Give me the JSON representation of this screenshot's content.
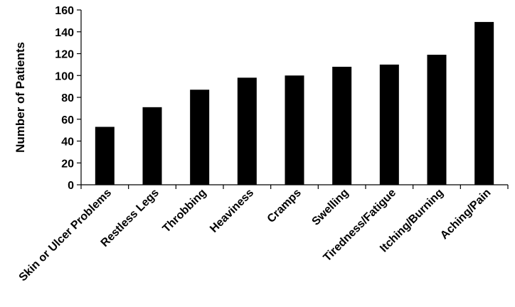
{
  "chart_data": {
    "type": "bar",
    "title": "",
    "xlabel": "",
    "ylabel": "Number of Patients",
    "categories": [
      "Skin or Ulcer Problems",
      "Restless Legs",
      "Throbbing",
      "Heaviness",
      "Cramps",
      "Swelling",
      "Tiredness/Fatigue",
      "Itching/Burning",
      "Aching/Pain"
    ],
    "values": [
      53,
      71,
      87,
      98,
      100,
      108,
      110,
      119,
      149
    ],
    "ylim": [
      0,
      160
    ],
    "yticks": [
      0,
      20,
      40,
      60,
      80,
      100,
      120,
      140,
      160
    ],
    "grid": false,
    "legend": "none",
    "bar_color": "#000000"
  }
}
